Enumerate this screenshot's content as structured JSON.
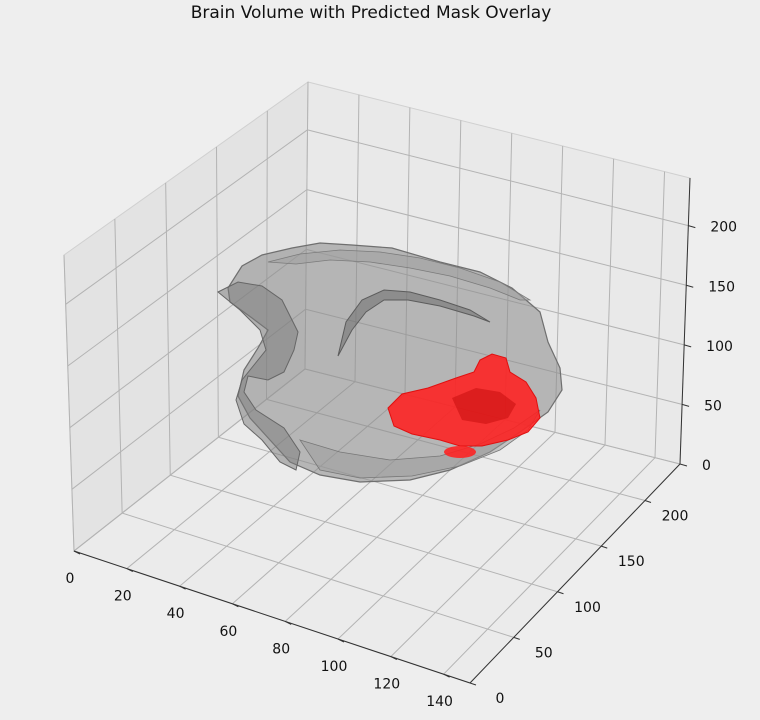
{
  "chart_data": {
    "type": "3d-surface",
    "title": "Brain Volume with Predicted Mask Overlay",
    "xlabel": "",
    "ylabel": "",
    "zlabel": "",
    "x_ticks": [
      "0",
      "20",
      "40",
      "60",
      "80",
      "100",
      "120",
      "140"
    ],
    "y_ticks": [
      "0",
      "50",
      "100",
      "150",
      "200"
    ],
    "z_ticks": [
      "0",
      "50",
      "100",
      "150",
      "200"
    ],
    "xlim": [
      0,
      150
    ],
    "ylim": [
      0,
      240
    ],
    "zlim": [
      0,
      240
    ],
    "grid": true,
    "series": [
      {
        "color": "#808080",
        "opacity": 0.45
      },
      {
        "color": "#ff2020",
        "opacity": 0.9
      }
    ]
  }
}
